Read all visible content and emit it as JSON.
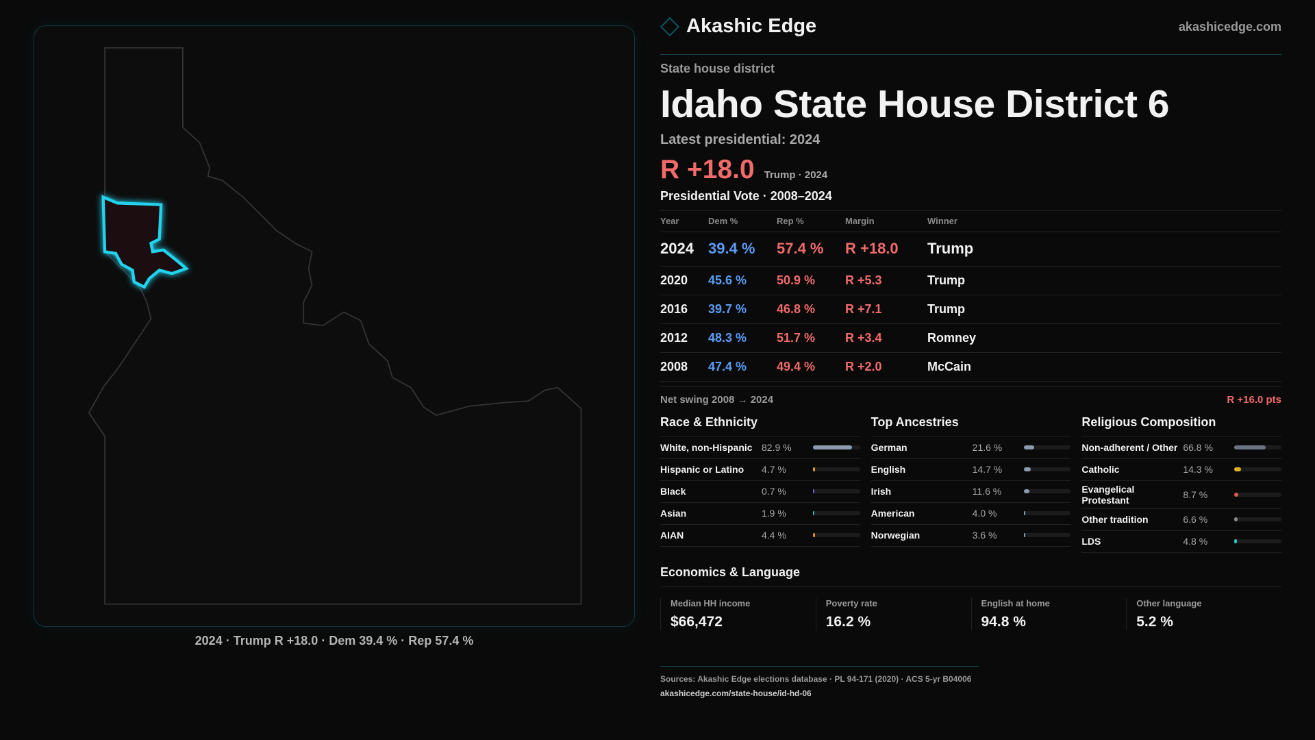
{
  "brand": {
    "name": "Akashic Edge",
    "site": "akashicedge.com"
  },
  "kicker": "State house district",
  "title": "Idaho State House District 6",
  "latest": "Latest presidential: 2024",
  "margin": {
    "value": "R +18.0",
    "sub": "Trump · 2024"
  },
  "map": {
    "caption": "2024 · Trump R +18.0 · Dem 39.4 % · Rep 57.4 %",
    "highlight_color": "#22d3ee"
  },
  "pv": {
    "title": "Presidential Vote · 2008–2024",
    "headers": [
      "Year",
      "Dem %",
      "Rep %",
      "Margin",
      "Winner"
    ],
    "rows": [
      {
        "year": "2024",
        "dem": "39.4 %",
        "rep": "57.4 %",
        "margin": "R +18.0",
        "winner": "Trump"
      },
      {
        "year": "2020",
        "dem": "45.6 %",
        "rep": "50.9 %",
        "margin": "R +5.3",
        "winner": "Trump"
      },
      {
        "year": "2016",
        "dem": "39.7 %",
        "rep": "46.8 %",
        "margin": "R +7.1",
        "winner": "Trump"
      },
      {
        "year": "2012",
        "dem": "48.3 %",
        "rep": "51.7 %",
        "margin": "R +3.4",
        "winner": "Romney"
      },
      {
        "year": "2008",
        "dem": "47.4 %",
        "rep": "49.4 %",
        "margin": "R +2.0",
        "winner": "McCain"
      }
    ]
  },
  "swing": {
    "label": "Net swing 2008 → 2024",
    "value": "R +16.0 pts"
  },
  "race": {
    "title": "Race & Ethnicity",
    "items": [
      {
        "label": "White, non-Hispanic",
        "pct": "82.9 %",
        "value": 82.9,
        "color": "#8a9bb0"
      },
      {
        "label": "Hispanic or Latino",
        "pct": "4.7 %",
        "value": 4.7,
        "color": "#e0a020"
      },
      {
        "label": "Black",
        "pct": "0.7 %",
        "value": 0.7,
        "color": "#7a5cc8"
      },
      {
        "label": "Asian",
        "pct": "1.9 %",
        "value": 1.9,
        "color": "#2bb3a0"
      },
      {
        "label": "AIAN",
        "pct": "4.4 %",
        "value": 4.4,
        "color": "#e08a20"
      }
    ]
  },
  "ancestry": {
    "title": "Top Ancestries",
    "items": [
      {
        "label": "German",
        "pct": "21.6 %",
        "value": 21.6,
        "color": "#8a9bb0"
      },
      {
        "label": "English",
        "pct": "14.7 %",
        "value": 14.7,
        "color": "#8a9bb0"
      },
      {
        "label": "Irish",
        "pct": "11.6 %",
        "value": 11.6,
        "color": "#8a9bb0"
      },
      {
        "label": "American",
        "pct": "4.0 %",
        "value": 4.0,
        "color": "#8a9bb0"
      },
      {
        "label": "Norwegian",
        "pct": "3.6 %",
        "value": 3.6,
        "color": "#8a9bb0"
      }
    ]
  },
  "religion": {
    "title": "Religious Composition",
    "items": [
      {
        "label": "Non-adherent / Other",
        "pct": "66.8 %",
        "value": 66.8,
        "color": "#6b7280"
      },
      {
        "label": "Catholic",
        "pct": "14.3 %",
        "value": 14.3,
        "color": "#e0b020"
      },
      {
        "label": "Evangelical Protestant",
        "pct": "8.7 %",
        "value": 8.7,
        "color": "#e05555"
      },
      {
        "label": "Other tradition",
        "pct": "6.6 %",
        "value": 6.6,
        "color": "#8a8a8a"
      },
      {
        "label": "LDS",
        "pct": "4.8 %",
        "value": 4.8,
        "color": "#2bc4c4"
      }
    ]
  },
  "econ": {
    "title": "Economics & Language",
    "stats": [
      {
        "label": "Median HH income",
        "value": "$66,472"
      },
      {
        "label": "Poverty rate",
        "value": "16.2 %"
      },
      {
        "label": "English at home",
        "value": "94.8 %"
      },
      {
        "label": "Other language",
        "value": "5.2 %"
      }
    ]
  },
  "footer": {
    "sources": "Sources: Akashic Edge elections database · PL 94-171 (2020) · ACS 5-yr B04006",
    "url": "akashicedge.com/state-house/id-hd-06"
  }
}
